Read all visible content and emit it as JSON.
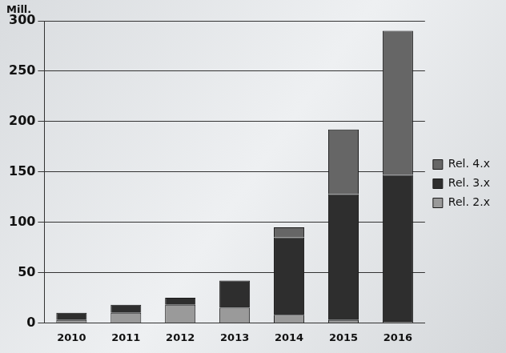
{
  "chart_data": {
    "type": "bar",
    "y_label": "Mill.",
    "categories": [
      "2010",
      "2011",
      "2012",
      "2013",
      "2014",
      "2015",
      "2016"
    ],
    "series": [
      {
        "name": "Rel. 2.x",
        "color": "#9a9a9a",
        "values": [
          3,
          10,
          18,
          15,
          8,
          3,
          2
        ]
      },
      {
        "name": "Rel. 3.x",
        "color": "#2e2e2e",
        "values": [
          7,
          8,
          7,
          27,
          77,
          125,
          145
        ]
      },
      {
        "name": "Rel. 4.x",
        "color": "#666666",
        "values": [
          0,
          0,
          0,
          0,
          10,
          64,
          143
        ]
      }
    ],
    "ylim": [
      0,
      300
    ],
    "yticks": [
      0,
      50,
      100,
      150,
      200,
      250,
      300
    ],
    "grid": true,
    "stacked": true,
    "legend": "right"
  }
}
